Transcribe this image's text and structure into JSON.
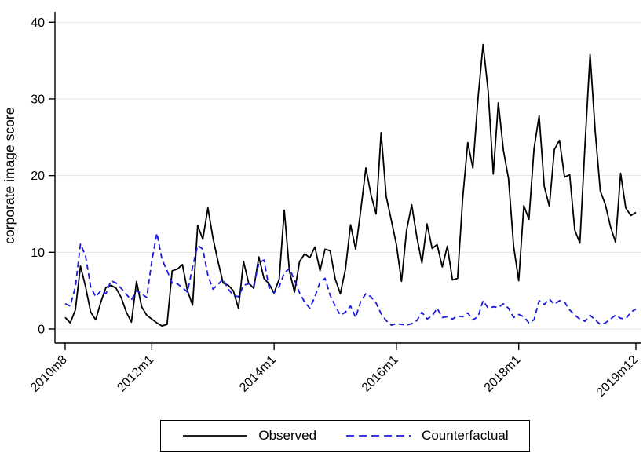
{
  "chart_data": {
    "type": "line",
    "title": "",
    "xlabel": "",
    "ylabel": "corporate image score",
    "ylim": [
      0,
      40
    ],
    "yticks": [
      0,
      10,
      20,
      30,
      40
    ],
    "ytick_labels": [
      "0",
      "10",
      "20",
      "30",
      "40"
    ],
    "x_start": "2010m8",
    "x_end": "2019m12",
    "n_points": 113,
    "xticks": [
      {
        "label": "2010m8",
        "month_index": 0
      },
      {
        "label": "2012m1",
        "month_index": 17
      },
      {
        "label": "2014m1",
        "month_index": 41
      },
      {
        "label": "2016m1",
        "month_index": 65
      },
      {
        "label": "2018m1",
        "month_index": 89
      },
      {
        "label": "2019m12",
        "month_index": 112
      }
    ],
    "grid": "horizontal",
    "grid_color": "#e5e5e5",
    "axis_color": "#000000",
    "legend_position": "bottom-center-boxed",
    "series": [
      {
        "name": "Observed",
        "color": "#000000",
        "style": "solid",
        "values": [
          1.5,
          0.8,
          2.5,
          8.2,
          5.5,
          2.2,
          1.2,
          3.5,
          5.4,
          5.7,
          5.3,
          4.1,
          2.2,
          0.9,
          6.2,
          2.9,
          1.8,
          1.3,
          0.8,
          0.4,
          0.6,
          7.6,
          7.8,
          8.4,
          5.0,
          3.1,
          13.5,
          11.7,
          15.8,
          11.9,
          8.8,
          6.0,
          5.7,
          5.0,
          2.7,
          8.8,
          6.0,
          5.3,
          9.4,
          6.6,
          5.9,
          4.7,
          6.5,
          15.5,
          7.6,
          4.8,
          8.8,
          9.8,
          9.3,
          10.7,
          7.6,
          10.4,
          10.2,
          6.5,
          4.6,
          7.8,
          13.6,
          10.4,
          15.5,
          21.0,
          17.5,
          15.0,
          25.6,
          17.3,
          14.2,
          11.0,
          6.2,
          12.9,
          16.2,
          12.0,
          8.6,
          13.7,
          10.5,
          11.0,
          8.1,
          10.8,
          6.4,
          6.6,
          17.0,
          24.3,
          21.0,
          30.0,
          37.1,
          31.0,
          20.2,
          29.5,
          23.3,
          19.6,
          10.8,
          6.3,
          16.1,
          14.3,
          23.5,
          27.8,
          18.6,
          16.0,
          23.4,
          24.6,
          19.8,
          20.1,
          12.9,
          11.2,
          24.0,
          35.8,
          25.8,
          18.0,
          16.2,
          13.4,
          11.3,
          20.3,
          15.8,
          14.8,
          15.2
        ]
      },
      {
        "name": "Counterfactual",
        "color": "#1a1ae0",
        "style": "dashed",
        "values": [
          3.3,
          3.0,
          5.5,
          11.1,
          9.5,
          5.5,
          4.2,
          5.0,
          4.6,
          6.3,
          6.0,
          5.3,
          4.5,
          3.8,
          5.0,
          4.6,
          4.1,
          8.8,
          12.5,
          9.1,
          7.6,
          6.0,
          5.9,
          5.4,
          4.8,
          8.1,
          10.9,
          10.4,
          7.0,
          5.2,
          5.8,
          6.5,
          5.2,
          4.4,
          4.2,
          5.7,
          5.9,
          5.6,
          8.6,
          9.0,
          5.4,
          4.7,
          5.5,
          7.3,
          7.9,
          6.4,
          4.7,
          3.5,
          2.7,
          4.2,
          6.1,
          6.6,
          4.4,
          3.0,
          1.8,
          2.2,
          3.0,
          1.5,
          3.6,
          4.6,
          4.2,
          3.4,
          2.0,
          1.1,
          0.5,
          0.7,
          0.6,
          0.5,
          0.7,
          1.1,
          2.2,
          1.3,
          1.7,
          2.7,
          1.5,
          1.6,
          1.3,
          1.7,
          1.6,
          2.1,
          1.2,
          1.6,
          3.7,
          2.7,
          2.9,
          2.8,
          3.3,
          2.7,
          1.5,
          1.9,
          1.6,
          0.8,
          1.2,
          3.7,
          3.2,
          3.9,
          3.2,
          3.7,
          3.5,
          2.5,
          1.8,
          1.3,
          1.0,
          1.8,
          1.2,
          0.6,
          0.8,
          1.3,
          1.8,
          1.4,
          1.3,
          2.2,
          2.6
        ]
      }
    ]
  },
  "legend": {
    "items": [
      {
        "label": "Observed"
      },
      {
        "label": "Counterfactual"
      }
    ]
  }
}
